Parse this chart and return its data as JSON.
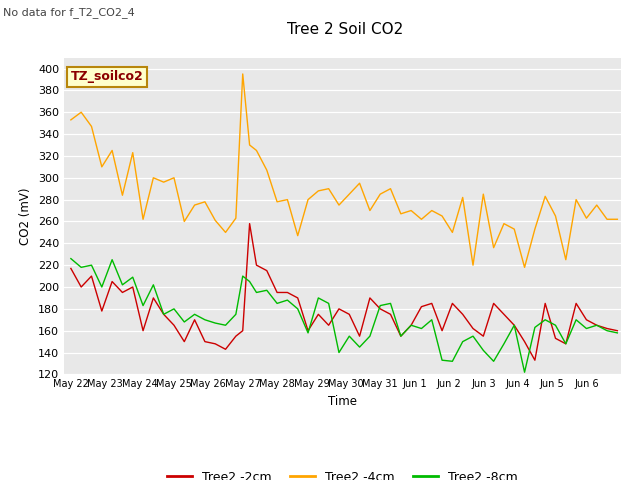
{
  "title": "Tree 2 Soil CO2",
  "subtitle": "No data for f_T2_CO2_4",
  "ylabel": "CO2 (mV)",
  "xlabel": "Time",
  "legend_label": "TZ_soilco2",
  "ylim": [
    120,
    410
  ],
  "yticks": [
    120,
    140,
    160,
    180,
    200,
    220,
    240,
    260,
    280,
    300,
    320,
    340,
    360,
    380,
    400
  ],
  "bg_color": "#e8e8e8",
  "series": {
    "red": {
      "label": "Tree2 -2cm",
      "color": "#cc0000",
      "x": [
        0,
        0.3,
        0.6,
        0.9,
        1.2,
        1.5,
        1.8,
        2.1,
        2.4,
        2.7,
        3.0,
        3.3,
        3.6,
        3.9,
        4.2,
        4.5,
        4.8,
        5.0,
        5.2,
        5.4,
        5.7,
        6.0,
        6.3,
        6.6,
        6.9,
        7.2,
        7.5,
        7.8,
        8.1,
        8.4,
        8.7,
        9.0,
        9.3,
        9.6,
        9.9,
        10.2,
        10.5,
        10.8,
        11.1,
        11.4,
        11.7,
        12.0,
        12.3,
        12.6,
        12.9,
        13.2,
        13.5,
        13.8,
        14.1,
        14.4,
        14.7,
        15.0,
        15.3,
        15.6,
        15.9
      ],
      "y": [
        217,
        200,
        210,
        178,
        205,
        195,
        200,
        160,
        190,
        175,
        165,
        150,
        170,
        150,
        148,
        143,
        155,
        160,
        258,
        220,
        215,
        195,
        195,
        190,
        160,
        175,
        165,
        180,
        175,
        155,
        190,
        180,
        175,
        155,
        165,
        182,
        185,
        160,
        185,
        175,
        162,
        155,
        185,
        175,
        165,
        150,
        133,
        185,
        153,
        148,
        185,
        170,
        165,
        162,
        160
      ]
    },
    "orange": {
      "label": "Tree2 -4cm",
      "color": "#ffa500",
      "x": [
        0,
        0.3,
        0.6,
        0.9,
        1.2,
        1.5,
        1.8,
        2.1,
        2.4,
        2.7,
        3.0,
        3.3,
        3.6,
        3.9,
        4.2,
        4.5,
        4.8,
        5.0,
        5.2,
        5.4,
        5.7,
        6.0,
        6.3,
        6.6,
        6.9,
        7.2,
        7.5,
        7.8,
        8.1,
        8.4,
        8.7,
        9.0,
        9.3,
        9.6,
        9.9,
        10.2,
        10.5,
        10.8,
        11.1,
        11.4,
        11.7,
        12.0,
        12.3,
        12.6,
        12.9,
        13.2,
        13.5,
        13.8,
        14.1,
        14.4,
        14.7,
        15.0,
        15.3,
        15.6,
        15.9
      ],
      "y": [
        353,
        360,
        347,
        310,
        325,
        284,
        323,
        262,
        300,
        296,
        300,
        260,
        275,
        278,
        261,
        250,
        263,
        395,
        330,
        325,
        307,
        278,
        280,
        247,
        280,
        288,
        290,
        275,
        285,
        295,
        270,
        285,
        290,
        267,
        270,
        262,
        270,
        265,
        250,
        282,
        220,
        285,
        236,
        258,
        253,
        218,
        253,
        283,
        265,
        225,
        280,
        263,
        275,
        262,
        262
      ]
    },
    "green": {
      "label": "Tree2 -8cm",
      "color": "#00bb00",
      "x": [
        0,
        0.3,
        0.6,
        0.9,
        1.2,
        1.5,
        1.8,
        2.1,
        2.4,
        2.7,
        3.0,
        3.3,
        3.6,
        3.9,
        4.2,
        4.5,
        4.8,
        5.0,
        5.2,
        5.4,
        5.7,
        6.0,
        6.3,
        6.6,
        6.9,
        7.2,
        7.5,
        7.8,
        8.1,
        8.4,
        8.7,
        9.0,
        9.3,
        9.6,
        9.9,
        10.2,
        10.5,
        10.8,
        11.1,
        11.4,
        11.7,
        12.0,
        12.3,
        12.6,
        12.9,
        13.2,
        13.5,
        13.8,
        14.1,
        14.4,
        14.7,
        15.0,
        15.3,
        15.6,
        15.9
      ],
      "y": [
        226,
        218,
        220,
        200,
        225,
        202,
        209,
        183,
        202,
        175,
        180,
        168,
        175,
        170,
        167,
        165,
        175,
        210,
        205,
        195,
        197,
        185,
        188,
        180,
        158,
        190,
        185,
        140,
        155,
        145,
        155,
        183,
        185,
        155,
        165,
        162,
        170,
        133,
        132,
        150,
        155,
        142,
        132,
        148,
        165,
        122,
        163,
        170,
        165,
        148,
        170,
        162,
        165,
        160,
        158
      ]
    }
  },
  "xtick_positions": [
    0,
    1,
    2,
    3,
    4,
    5,
    6,
    7,
    8,
    9,
    10,
    11,
    12,
    13,
    14,
    15
  ],
  "xtick_labels": [
    "May 22",
    "May 23",
    "May 24",
    "May 25",
    "May 26",
    "May 27",
    "May 28",
    "May 29",
    "May 30",
    "May 31",
    "Jun 1",
    "Jun 2",
    "Jun 3",
    "Jun 4",
    "Jun 5",
    "Jun 6"
  ],
  "xlim": [
    -0.2,
    16.0
  ]
}
